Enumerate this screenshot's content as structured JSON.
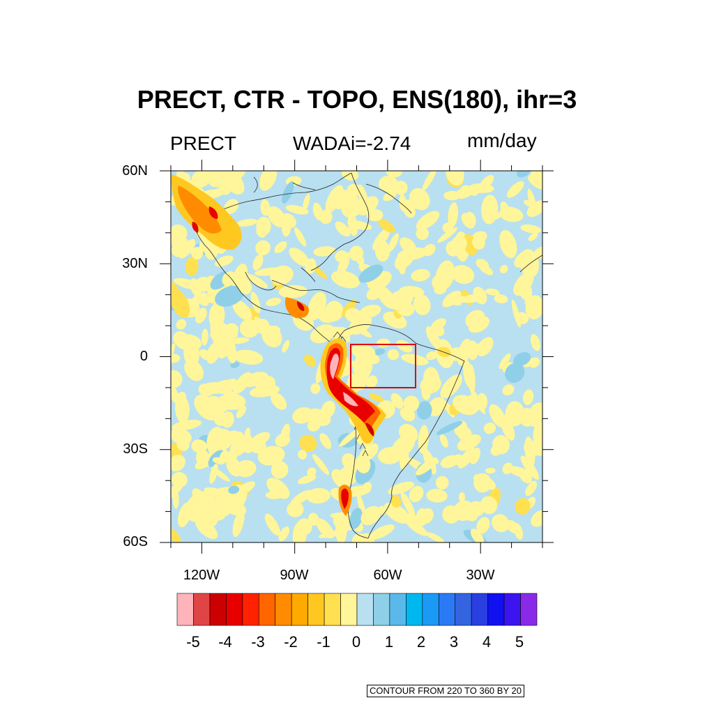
{
  "title": "PRECT, CTR - TOPO, ENS(180), ihr=3",
  "left_string": "PRECT",
  "center_string": "WADAi=-2.74",
  "right_string": "mm/day",
  "lat_labels": [
    "60N",
    "30N",
    "0",
    "30S",
    "60S"
  ],
  "lon_labels": [
    "120W",
    "90W",
    "60W",
    "30W"
  ],
  "map": {
    "projection": "cylindrical equidistant",
    "lon_range": [
      -130,
      -10
    ],
    "lat_range": [
      -60,
      60
    ],
    "highlight_box": {
      "lon": [
        -73,
        -52
      ],
      "lat": [
        -10,
        4
      ],
      "color": "#e00000"
    }
  },
  "colorbar": {
    "colors": [
      "#ffb3ba",
      "#e04545",
      "#cc0000",
      "#e80000",
      "#ff2200",
      "#ff6600",
      "#ff8c00",
      "#ffaa00",
      "#ffc820",
      "#ffe050",
      "#fff59a",
      "#b8e0f0",
      "#90cfe8",
      "#5ab9ea",
      "#00b8f0",
      "#1a9af5",
      "#2a7af5",
      "#3464e0",
      "#2a3fe0",
      "#1010f0",
      "#3c14f0",
      "#8a2ae8"
    ],
    "labels": [
      "-5",
      "-4",
      "-3",
      "-2",
      "-1",
      "0",
      "1",
      "2",
      "3",
      "4",
      "5"
    ]
  },
  "footer": "CONTOUR FROM 220 TO 360 BY 20"
}
